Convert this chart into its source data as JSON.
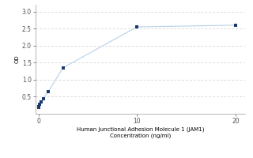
{
  "x": [
    0,
    0.0625,
    0.125,
    0.25,
    0.5,
    1.0,
    2.5,
    10.0,
    20.0
  ],
  "y": [
    0.19,
    0.21,
    0.27,
    0.35,
    0.45,
    0.65,
    1.35,
    2.55,
    2.6
  ],
  "line_color": "#b8d0e8",
  "marker_color": "#1a3a6b",
  "marker_size": 12,
  "marker_style": "s",
  "xlabel_line1": "Human Junctional Adhesion Molecule 1 (JAM1)",
  "xlabel_line2": "Concentration (ng/ml)",
  "ylabel": "OD",
  "xlim": [
    -0.3,
    21
  ],
  "ylim": [
    0.0,
    3.2
  ],
  "yticks": [
    0.5,
    1.0,
    1.5,
    2.0,
    2.5,
    3.0
  ],
  "xticks": [
    0,
    10,
    20
  ],
  "grid_color": "#cccccc",
  "background_color": "#ffffff",
  "font_size_label": 5.0,
  "font_size_tick": 5.5,
  "fig_width": 3.2,
  "fig_height": 2.0
}
